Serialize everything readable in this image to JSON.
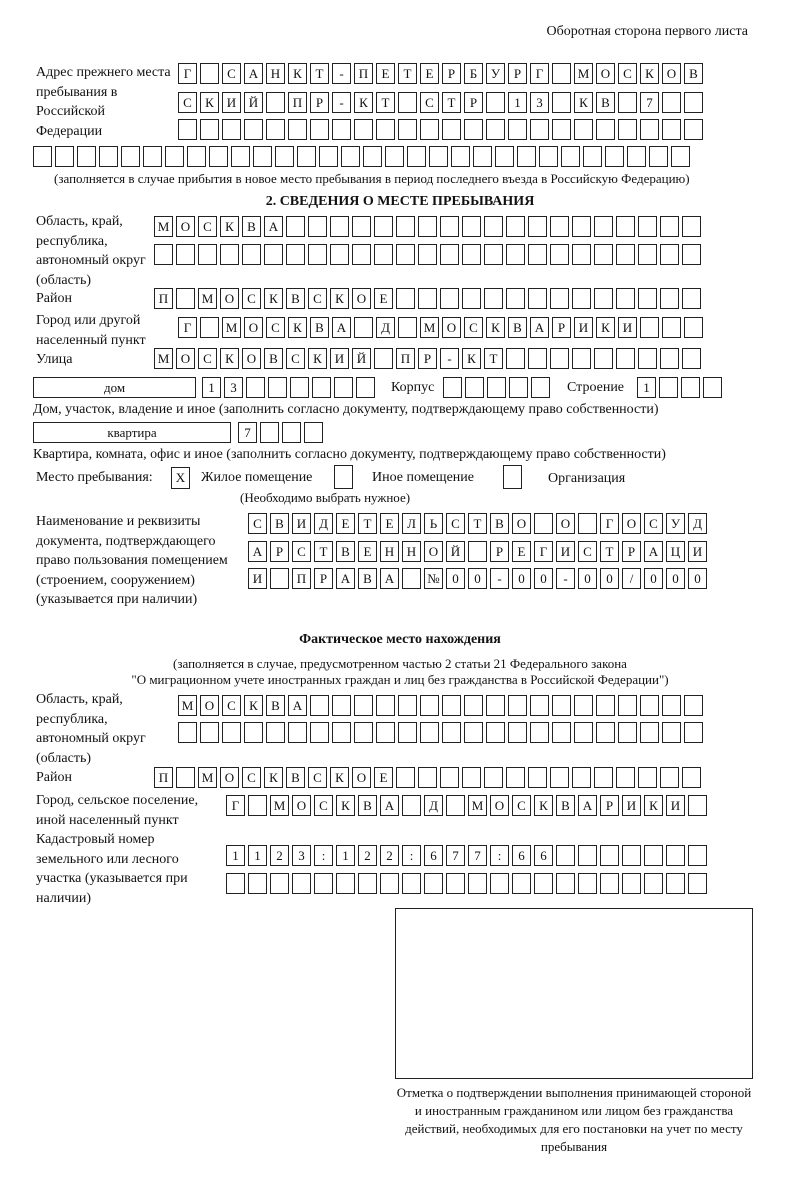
{
  "page_note": "Оборотная сторона первого листа",
  "prev_address": {
    "label": "Адрес прежнего места пребывания в Российской Федерации",
    "rows": [
      "Г САНКТ-ПЕТЕРБУРГ МОСКОВ",
      "СКИЙ ПР-КТ СТР 13 КВ 7",
      "",
      ""
    ],
    "note": "(заполняется в случае прибытия в новое место пребывания в период последнего въезда в Российскую Федерацию)"
  },
  "section2": {
    "heading": "2. СВЕДЕНИЯ О МЕСТЕ ПРЕБЫВАНИЯ",
    "region_label": "Область, край, республика, автономный округ (область)",
    "region_rows": [
      "МОСКВА",
      ""
    ],
    "district_label": "Район",
    "district": "П МОСКВСКОЕ",
    "city_label": "Город или другой населенный пункт",
    "city": "Г МОСКВА Д МОСКВАРИКИ",
    "street_label": "Улица",
    "street": "МОСКОВСКИЙ ПР-КТ",
    "house_type": "дом",
    "house_number": "13",
    "korpus_label": "Корпус",
    "korpus": "",
    "building_label": "Строение",
    "building": "1",
    "house_note": "Дом, участок, владение и иное (заполнить согласно документу, подтверждающему право собственности)",
    "apt_type": "квартира",
    "apt_number": "7",
    "apt_note": "Квартира, комната, офис и иное (заполнить согласно документу, подтверждающему право собственности)",
    "stay_label": "Место пребывания:",
    "stay_options": [
      {
        "label": "Жилое помещение",
        "mark": "X"
      },
      {
        "label": "Иное помещение",
        "mark": ""
      },
      {
        "label": "Организация",
        "mark": ""
      }
    ],
    "stay_note": "(Необходимо выбрать нужное)",
    "doc_label": "Наименование и реквизиты документа, подтверждающего право пользования помещением (строением, сооружением) (указывается при наличии)",
    "doc_rows": [
      "СВИДЕТЕЛЬСТВО О ГОСУД",
      "АРСТВЕННОЙ РЕГИСТРАЦИ",
      "И ПРАВА №00-00-00/000"
    ]
  },
  "actual": {
    "heading": "Фактическое место нахождения",
    "note1": "(заполняется в случае, предусмотренном частью 2 статьи 21 Федерального закона",
    "note2": "\"О миграционном учете иностранных граждан и лиц без гражданства в Российской Федерации\")",
    "region_label": "Область, край, республика, автономный округ (область)",
    "region_rows": [
      "МОСКВА",
      ""
    ],
    "district_label": "Район",
    "district": "П МОСКВСКОЕ",
    "city_label": "Город, сельское поселение, иной населенный пункт",
    "city": "Г МОСКВА Д МОСКВАРИКИ",
    "cadastre_label": "Кадастровый номер земельного или лесного участка (указывается при наличии)",
    "cadastre_rows": [
      "1123:122:677:66",
      ""
    ]
  },
  "stamp_caption": "Отметка о подтверждении выполнения принимающей стороной и иностранным гражданином или лицом без гражданства действий, необходимых для его постановки на учет по месту пребывания"
}
